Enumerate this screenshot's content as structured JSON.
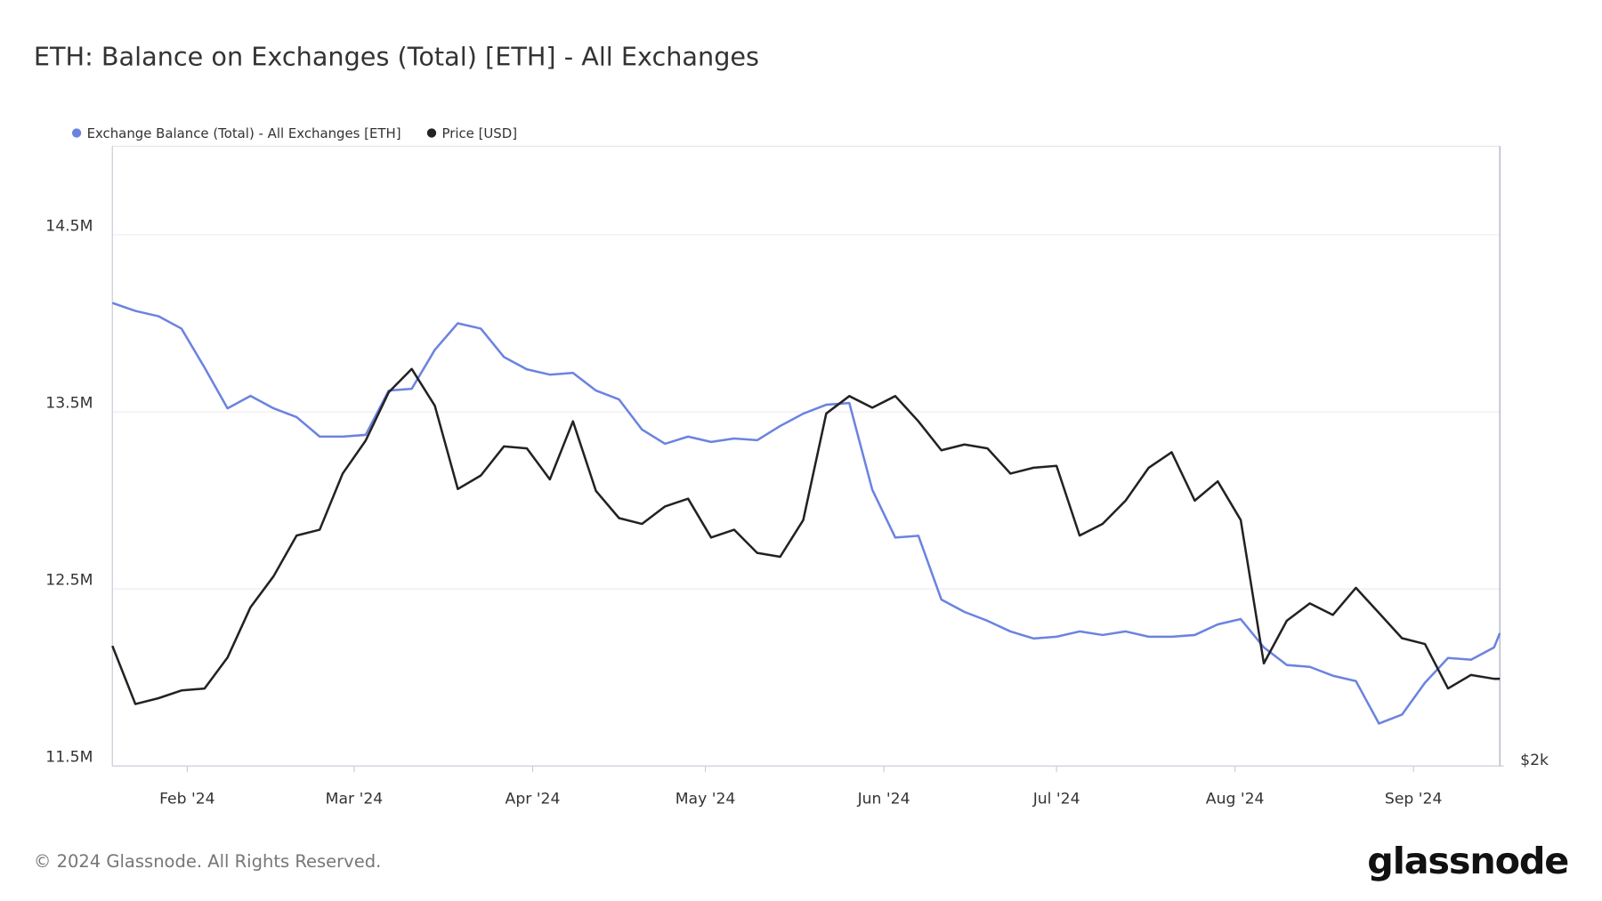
{
  "chart_data": {
    "type": "line",
    "title": "ETH: Balance on Exchanges (Total) [ETH] - All Exchanges",
    "copyright": "© 2024 Glassnode. All Rights Reserved.",
    "brand": "glassnode",
    "x": [
      "2024-01-19",
      "2024-01-23",
      "2024-01-27",
      "2024-01-31",
      "2024-02-04",
      "2024-02-08",
      "2024-02-12",
      "2024-02-16",
      "2024-02-20",
      "2024-02-24",
      "2024-02-28",
      "2024-03-03",
      "2024-03-07",
      "2024-03-11",
      "2024-03-15",
      "2024-03-19",
      "2024-03-23",
      "2024-03-27",
      "2024-03-31",
      "2024-04-04",
      "2024-04-08",
      "2024-04-12",
      "2024-04-16",
      "2024-04-20",
      "2024-04-24",
      "2024-04-28",
      "2024-05-02",
      "2024-05-06",
      "2024-05-10",
      "2024-05-14",
      "2024-05-18",
      "2024-05-22",
      "2024-05-26",
      "2024-05-30",
      "2024-06-03",
      "2024-06-07",
      "2024-06-11",
      "2024-06-15",
      "2024-06-19",
      "2024-06-23",
      "2024-06-27",
      "2024-07-01",
      "2024-07-05",
      "2024-07-09",
      "2024-07-13",
      "2024-07-17",
      "2024-07-21",
      "2024-07-25",
      "2024-07-29",
      "2024-08-02",
      "2024-08-06",
      "2024-08-10",
      "2024-08-14",
      "2024-08-18",
      "2024-08-22",
      "2024-08-26",
      "2024-08-30",
      "2024-09-03",
      "2024-09-07",
      "2024-09-11",
      "2024-09-15",
      "2024-09-16"
    ],
    "series": [
      {
        "name": "Exchange Balance (Total) - All Exchanges [ETH]",
        "color": "#6b83e0",
        "axis": "y",
        "values": [
          14115000,
          14070000,
          14040000,
          13970000,
          13750000,
          13520000,
          13590000,
          13520000,
          13470000,
          13360000,
          13360000,
          13370000,
          13620000,
          13630000,
          13850000,
          14000000,
          13970000,
          13810000,
          13740000,
          13710000,
          13720000,
          13620000,
          13570000,
          13400000,
          13320000,
          13360000,
          13330000,
          13350000,
          13340000,
          13420000,
          13490000,
          13540000,
          13550000,
          13060000,
          12790000,
          12800000,
          12440000,
          12370000,
          12320000,
          12260000,
          12220000,
          12230000,
          12260000,
          12240000,
          12260000,
          12230000,
          12230000,
          12240000,
          12300000,
          12330000,
          12170000,
          12070000,
          12060000,
          12010000,
          11980000,
          11740000,
          11790000,
          11970000,
          12110000,
          12100000,
          12170000,
          12250000
        ]
      },
      {
        "name": "Price [USD]",
        "color": "#222222",
        "axis": "y2",
        "values": [
          2620,
          2320,
          2350,
          2390,
          2400,
          2560,
          2820,
          2980,
          3190,
          3220,
          3510,
          3680,
          3930,
          4050,
          3860,
          3430,
          3500,
          3650,
          3640,
          3480,
          3780,
          3420,
          3280,
          3250,
          3340,
          3380,
          3180,
          3220,
          3100,
          3080,
          3270,
          3820,
          3910,
          3850,
          3910,
          3780,
          3630,
          3660,
          3640,
          3510,
          3540,
          3550,
          3190,
          3250,
          3370,
          3540,
          3620,
          3370,
          3470,
          3270,
          2530,
          2750,
          2840,
          2780,
          2920,
          2790,
          2660,
          2630,
          2400,
          2470,
          2450,
          2450
        ]
      }
    ],
    "xlim": [
      "2024-01-19",
      "2024-09-16"
    ],
    "xticks": [
      {
        "value": "2024-02-01",
        "label": "Feb '24"
      },
      {
        "value": "2024-03-01",
        "label": "Mar '24"
      },
      {
        "value": "2024-04-01",
        "label": "Apr '24"
      },
      {
        "value": "2024-05-01",
        "label": "May '24"
      },
      {
        "value": "2024-06-01",
        "label": "Jun '24"
      },
      {
        "value": "2024-07-01",
        "label": "Jul '24"
      },
      {
        "value": "2024-08-01",
        "label": "Aug '24"
      },
      {
        "value": "2024-09-01",
        "label": "Sep '24"
      }
    ],
    "ylim": [
      11500000,
      15000000
    ],
    "yticks": [
      {
        "value": 11500000,
        "label": "11.5M"
      },
      {
        "value": 12500000,
        "label": "12.5M"
      },
      {
        "value": 13500000,
        "label": "13.5M"
      },
      {
        "value": 14500000,
        "label": "14.5M"
      }
    ],
    "y2lim": [
      2000,
      5200
    ],
    "y2ticks": [
      {
        "value": 2000,
        "label": "$2k"
      }
    ],
    "grid": true
  }
}
